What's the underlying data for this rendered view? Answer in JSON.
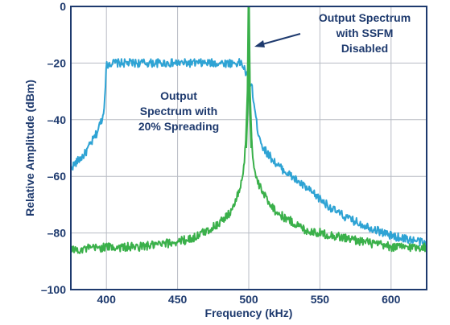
{
  "chart_data": {
    "type": "line",
    "xlabel": "Frequency (kHz)",
    "ylabel": "Relative Amplitude (dBm)",
    "xlim": [
      375,
      625
    ],
    "ylim": [
      -100,
      0
    ],
    "xticks": [
      400,
      450,
      500,
      550,
      600
    ],
    "yticks": [
      0,
      -20,
      -40,
      -60,
      -80,
      -100
    ],
    "ytick_labels": [
      "0",
      "–20",
      "–40",
      "–60",
      "–80",
      "–100"
    ],
    "grid": true,
    "colors": {
      "spread": "#2ea3d4",
      "ssfm_disabled": "#3ab04a",
      "frame": "#1e3a6e",
      "grid": "#b8bcc4"
    },
    "series": [
      {
        "key": "spread",
        "x": [
          375,
          385,
          393,
          398,
          400,
          402,
          450,
          495,
          502,
          506,
          510,
          520,
          530,
          540,
          550,
          560,
          570,
          580,
          590,
          600,
          610,
          620,
          625
        ],
        "y": [
          -57,
          -52,
          -45,
          -38,
          -21,
          -20,
          -20,
          -20,
          -28,
          -43,
          -50,
          -56,
          -60,
          -64,
          -68,
          -72,
          -75,
          -77,
          -79,
          -81,
          -82,
          -83,
          -84
        ]
      },
      {
        "key": "ssfm_disabled",
        "x": [
          375,
          400,
          420,
          440,
          460,
          475,
          485,
          490,
          494,
          497,
          499,
          500,
          501,
          503,
          506,
          510,
          520,
          530,
          540,
          550,
          560,
          570,
          580,
          600,
          625
        ],
        "y": [
          -86,
          -85,
          -85,
          -84,
          -82,
          -78,
          -74,
          -70,
          -64,
          -55,
          -38,
          0,
          -38,
          -55,
          -62,
          -66,
          -73,
          -76,
          -79,
          -80,
          -81,
          -82,
          -83,
          -85,
          -85
        ]
      }
    ],
    "annotations": [
      {
        "key": "ssfm",
        "lines": [
          "Output Spectrum",
          "with SSFM",
          "Disabled"
        ]
      },
      {
        "key": "spread",
        "lines": [
          "Output",
          "Spectrum with",
          "20% Spreading"
        ]
      }
    ]
  }
}
